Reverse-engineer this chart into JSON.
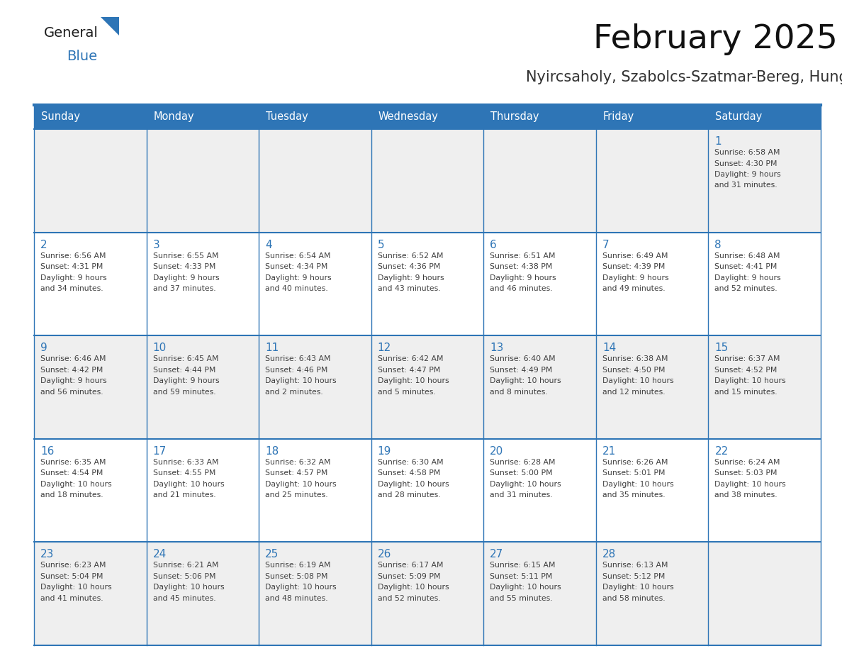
{
  "title": "February 2025",
  "subtitle": "Nyircsaholy, Szabolcs-Szatmar-Bereg, Hungary",
  "days_of_week": [
    "Sunday",
    "Monday",
    "Tuesday",
    "Wednesday",
    "Thursday",
    "Friday",
    "Saturday"
  ],
  "header_bg": "#2E75B6",
  "header_text": "#FFFFFF",
  "cell_bg_odd": "#EFEFEF",
  "cell_bg_even": "#FFFFFF",
  "text_color": "#404040",
  "day_num_color": "#2E75B6",
  "border_color": "#2E75B6",
  "calendar_data": [
    [
      null,
      null,
      null,
      null,
      null,
      null,
      {
        "day": 1,
        "sunrise": "6:58 AM",
        "sunset": "4:30 PM",
        "daylight": "9 hours",
        "daylight2": "and 31 minutes."
      }
    ],
    [
      {
        "day": 2,
        "sunrise": "6:56 AM",
        "sunset": "4:31 PM",
        "daylight": "9 hours",
        "daylight2": "and 34 minutes."
      },
      {
        "day": 3,
        "sunrise": "6:55 AM",
        "sunset": "4:33 PM",
        "daylight": "9 hours",
        "daylight2": "and 37 minutes."
      },
      {
        "day": 4,
        "sunrise": "6:54 AM",
        "sunset": "4:34 PM",
        "daylight": "9 hours",
        "daylight2": "and 40 minutes."
      },
      {
        "day": 5,
        "sunrise": "6:52 AM",
        "sunset": "4:36 PM",
        "daylight": "9 hours",
        "daylight2": "and 43 minutes."
      },
      {
        "day": 6,
        "sunrise": "6:51 AM",
        "sunset": "4:38 PM",
        "daylight": "9 hours",
        "daylight2": "and 46 minutes."
      },
      {
        "day": 7,
        "sunrise": "6:49 AM",
        "sunset": "4:39 PM",
        "daylight": "9 hours",
        "daylight2": "and 49 minutes."
      },
      {
        "day": 8,
        "sunrise": "6:48 AM",
        "sunset": "4:41 PM",
        "daylight": "9 hours",
        "daylight2": "and 52 minutes."
      }
    ],
    [
      {
        "day": 9,
        "sunrise": "6:46 AM",
        "sunset": "4:42 PM",
        "daylight": "9 hours",
        "daylight2": "and 56 minutes."
      },
      {
        "day": 10,
        "sunrise": "6:45 AM",
        "sunset": "4:44 PM",
        "daylight": "9 hours",
        "daylight2": "and 59 minutes."
      },
      {
        "day": 11,
        "sunrise": "6:43 AM",
        "sunset": "4:46 PM",
        "daylight": "10 hours",
        "daylight2": "and 2 minutes."
      },
      {
        "day": 12,
        "sunrise": "6:42 AM",
        "sunset": "4:47 PM",
        "daylight": "10 hours",
        "daylight2": "and 5 minutes."
      },
      {
        "day": 13,
        "sunrise": "6:40 AM",
        "sunset": "4:49 PM",
        "daylight": "10 hours",
        "daylight2": "and 8 minutes."
      },
      {
        "day": 14,
        "sunrise": "6:38 AM",
        "sunset": "4:50 PM",
        "daylight": "10 hours",
        "daylight2": "and 12 minutes."
      },
      {
        "day": 15,
        "sunrise": "6:37 AM",
        "sunset": "4:52 PM",
        "daylight": "10 hours",
        "daylight2": "and 15 minutes."
      }
    ],
    [
      {
        "day": 16,
        "sunrise": "6:35 AM",
        "sunset": "4:54 PM",
        "daylight": "10 hours",
        "daylight2": "and 18 minutes."
      },
      {
        "day": 17,
        "sunrise": "6:33 AM",
        "sunset": "4:55 PM",
        "daylight": "10 hours",
        "daylight2": "and 21 minutes."
      },
      {
        "day": 18,
        "sunrise": "6:32 AM",
        "sunset": "4:57 PM",
        "daylight": "10 hours",
        "daylight2": "and 25 minutes."
      },
      {
        "day": 19,
        "sunrise": "6:30 AM",
        "sunset": "4:58 PM",
        "daylight": "10 hours",
        "daylight2": "and 28 minutes."
      },
      {
        "day": 20,
        "sunrise": "6:28 AM",
        "sunset": "5:00 PM",
        "daylight": "10 hours",
        "daylight2": "and 31 minutes."
      },
      {
        "day": 21,
        "sunrise": "6:26 AM",
        "sunset": "5:01 PM",
        "daylight": "10 hours",
        "daylight2": "and 35 minutes."
      },
      {
        "day": 22,
        "sunrise": "6:24 AM",
        "sunset": "5:03 PM",
        "daylight": "10 hours",
        "daylight2": "and 38 minutes."
      }
    ],
    [
      {
        "day": 23,
        "sunrise": "6:23 AM",
        "sunset": "5:04 PM",
        "daylight": "10 hours",
        "daylight2": "and 41 minutes."
      },
      {
        "day": 24,
        "sunrise": "6:21 AM",
        "sunset": "5:06 PM",
        "daylight": "10 hours",
        "daylight2": "and 45 minutes."
      },
      {
        "day": 25,
        "sunrise": "6:19 AM",
        "sunset": "5:08 PM",
        "daylight": "10 hours",
        "daylight2": "and 48 minutes."
      },
      {
        "day": 26,
        "sunrise": "6:17 AM",
        "sunset": "5:09 PM",
        "daylight": "10 hours",
        "daylight2": "and 52 minutes."
      },
      {
        "day": 27,
        "sunrise": "6:15 AM",
        "sunset": "5:11 PM",
        "daylight": "10 hours",
        "daylight2": "and 55 minutes."
      },
      {
        "day": 28,
        "sunrise": "6:13 AM",
        "sunset": "5:12 PM",
        "daylight": "10 hours",
        "daylight2": "and 58 minutes."
      },
      null
    ]
  ]
}
